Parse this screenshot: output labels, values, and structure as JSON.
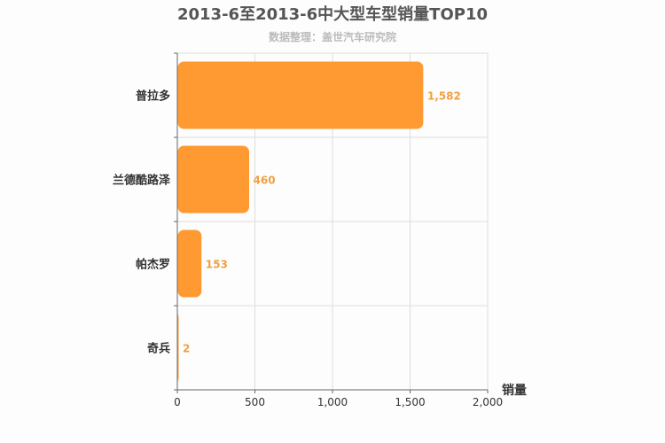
{
  "chart_data": {
    "type": "bar",
    "orientation": "horizontal",
    "title": "2013-6至2013-6中大型车型销量TOP10",
    "subtitle": "数据整理：盖世汽车研究院",
    "xlabel": "销量",
    "ylabel": "",
    "categories": [
      "普拉多",
      "兰德酷路泽",
      "帕杰罗",
      "奇兵"
    ],
    "values": [
      1582,
      460,
      153,
      2
    ],
    "value_labels": [
      "1,582",
      "460",
      "153",
      "2"
    ],
    "xlim": [
      0,
      2000
    ],
    "x_ticks": [
      0,
      500,
      1000,
      1500,
      2000
    ],
    "x_tick_labels": [
      "0",
      "500",
      "1,000",
      "1,500",
      "2,000"
    ],
    "grid": true,
    "bar_color": "#ff9a33",
    "label_color": "#f0a040"
  }
}
